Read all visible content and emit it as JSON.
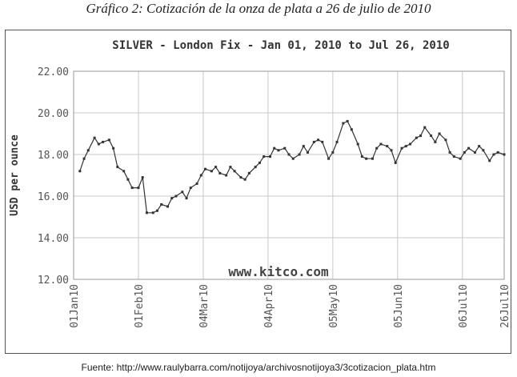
{
  "caption": "Gráfico 2: Cotización de la onza de plata a 26 de julio de 2010",
  "source": "Fuente: http://www.raulybarra.com/notijoya/archivosnotijoya3/3cotizacion_plata.htm",
  "chart_data": {
    "type": "line",
    "title": "SILVER - London Fix - Jan 01, 2010 to Jul 26, 2010",
    "ylabel": "USD per ounce",
    "watermark": "www.kitco.com",
    "ylim": [
      12,
      22
    ],
    "yticks": [
      "12.00",
      "14.00",
      "16.00",
      "18.00",
      "20.00",
      "22.00"
    ],
    "xticks": [
      "01Jan10",
      "01Feb10",
      "04Mar10",
      "04Apr10",
      "05May10",
      "05Jun10",
      "06Jul10",
      "26Jul10"
    ],
    "grid": true,
    "line_color": "#333333",
    "x": [
      "2010-01-04",
      "2010-01-06",
      "2010-01-08",
      "2010-01-11",
      "2010-01-13",
      "2010-01-15",
      "2010-01-18",
      "2010-01-20",
      "2010-01-22",
      "2010-01-25",
      "2010-01-27",
      "2010-01-29",
      "2010-02-01",
      "2010-02-03",
      "2010-02-05",
      "2010-02-08",
      "2010-02-10",
      "2010-02-12",
      "2010-02-15",
      "2010-02-17",
      "2010-02-19",
      "2010-02-22",
      "2010-02-24",
      "2010-02-26",
      "2010-03-01",
      "2010-03-03",
      "2010-03-05",
      "2010-03-08",
      "2010-03-10",
      "2010-03-12",
      "2010-03-15",
      "2010-03-17",
      "2010-03-19",
      "2010-03-22",
      "2010-03-24",
      "2010-03-26",
      "2010-03-29",
      "2010-03-31",
      "2010-04-02",
      "2010-04-05",
      "2010-04-07",
      "2010-04-09",
      "2010-04-12",
      "2010-04-14",
      "2010-04-16",
      "2010-04-19",
      "2010-04-21",
      "2010-04-23",
      "2010-04-26",
      "2010-04-28",
      "2010-04-30",
      "2010-05-03",
      "2010-05-05",
      "2010-05-07",
      "2010-05-10",
      "2010-05-12",
      "2010-05-14",
      "2010-05-17",
      "2010-05-19",
      "2010-05-21",
      "2010-05-24",
      "2010-05-26",
      "2010-05-28",
      "2010-05-31",
      "2010-06-02",
      "2010-06-04",
      "2010-06-07",
      "2010-06-09",
      "2010-06-11",
      "2010-06-14",
      "2010-06-16",
      "2010-06-18",
      "2010-06-21",
      "2010-06-23",
      "2010-06-25",
      "2010-06-28",
      "2010-06-30",
      "2010-07-02",
      "2010-07-05",
      "2010-07-07",
      "2010-07-09",
      "2010-07-12",
      "2010-07-14",
      "2010-07-16",
      "2010-07-19",
      "2010-07-21",
      "2010-07-23",
      "2010-07-26"
    ],
    "values": [
      17.2,
      17.8,
      18.2,
      18.8,
      18.5,
      18.6,
      18.7,
      18.3,
      17.4,
      17.2,
      16.8,
      16.4,
      16.4,
      16.9,
      15.2,
      15.2,
      15.3,
      15.6,
      15.5,
      15.9,
      16.0,
      16.2,
      15.9,
      16.4,
      16.6,
      17.0,
      17.3,
      17.2,
      17.4,
      17.1,
      17.0,
      17.4,
      17.2,
      16.9,
      16.8,
      17.1,
      17.4,
      17.6,
      17.9,
      17.9,
      18.3,
      18.2,
      18.3,
      18.0,
      17.8,
      18.0,
      18.4,
      18.1,
      18.6,
      18.7,
      18.6,
      17.8,
      18.1,
      18.6,
      19.5,
      19.6,
      19.2,
      18.5,
      17.9,
      17.8,
      17.8,
      18.3,
      18.5,
      18.4,
      18.2,
      17.6,
      18.3,
      18.4,
      18.5,
      18.8,
      18.9,
      19.3,
      18.9,
      18.6,
      19.0,
      18.7,
      18.1,
      17.9,
      17.8,
      18.1,
      18.3,
      18.1,
      18.4,
      18.2,
      17.7,
      18.0,
      18.1,
      18.0
    ]
  }
}
